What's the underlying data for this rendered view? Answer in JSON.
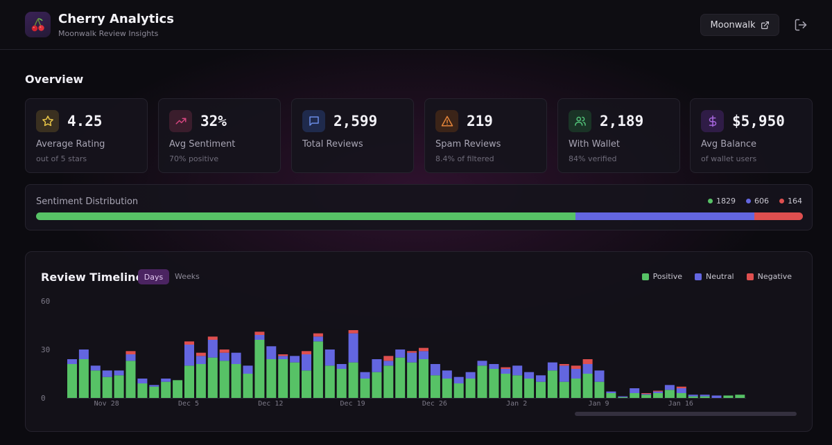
{
  "header": {
    "title": "Cherry Analytics",
    "subtitle": "Moonwalk Review Insights",
    "logo_icon": "cherry-icon",
    "moonwalk_button": "Moonwalk",
    "external_icon": "external-link-icon",
    "logout_icon": "logout-icon"
  },
  "overview": {
    "title": "Overview",
    "cards": [
      {
        "value": "4.25",
        "label": "Average Rating",
        "sub": "out of 5 stars",
        "icon": "star-icon",
        "color": "#e8c547",
        "bg": "#3a3020"
      },
      {
        "value": "32%",
        "label": "Avg Sentiment",
        "sub": "70% positive",
        "icon": "trending-up-icon",
        "color": "#d6457f",
        "bg": "#3a1d2c"
      },
      {
        "value": "2,599",
        "label": "Total Reviews",
        "sub": "",
        "icon": "message-icon",
        "color": "#6b8de6",
        "bg": "#1f2a4c"
      },
      {
        "value": "219",
        "label": "Spam Reviews",
        "sub": "8.4% of filtered",
        "icon": "warning-icon",
        "color": "#e5853a",
        "bg": "#3b2418"
      },
      {
        "value": "2,189",
        "label": "With Wallet",
        "sub": "84% verified",
        "icon": "users-icon",
        "color": "#53c47a",
        "bg": "#1a3326"
      },
      {
        "value": "$5,950",
        "label": "Avg Balance",
        "sub": "of wallet users",
        "icon": "dollar-icon",
        "color": "#a867e0",
        "bg": "#2f1c46"
      }
    ]
  },
  "distribution": {
    "title": "Sentiment Distribution",
    "positive": 1829,
    "neutral": 606,
    "negative": 164,
    "positive_label": "1829",
    "neutral_label": "606",
    "negative_label": "164",
    "colors": {
      "positive": "#57c266",
      "neutral": "#6366e0",
      "negative": "#de4f4f"
    }
  },
  "timeline": {
    "title": "Review Timeline",
    "tab_days": "Days",
    "tab_weeks": "Weeks",
    "legend": {
      "positive": "Positive",
      "neutral": "Neutral",
      "negative": "Negative"
    }
  },
  "chart_data": {
    "type": "bar",
    "stacked": true,
    "title": "Review Timeline",
    "ylim": [
      0,
      60
    ],
    "yticks": [
      0,
      30,
      60
    ],
    "xtick_labels": [
      {
        "index": 3,
        "label": "Nov 28"
      },
      {
        "index": 10,
        "label": "Dec 5"
      },
      {
        "index": 17,
        "label": "Dec 12"
      },
      {
        "index": 24,
        "label": "Dec 19"
      },
      {
        "index": 31,
        "label": "Dec 26"
      },
      {
        "index": 38,
        "label": "Jan 2"
      },
      {
        "index": 45,
        "label": "Jan 9"
      },
      {
        "index": 52,
        "label": "Jan 16"
      }
    ],
    "series": [
      {
        "name": "Positive",
        "color": "#57c266",
        "values": [
          21,
          24,
          17,
          13,
          14,
          23,
          9,
          7,
          10,
          11,
          20,
          21,
          25,
          23,
          21,
          15,
          36,
          24,
          24,
          22,
          17,
          35,
          20,
          18,
          22,
          12,
          16,
          20,
          25,
          22,
          24,
          14,
          12,
          9,
          12,
          20,
          18,
          15,
          14,
          12,
          10,
          17,
          10,
          12,
          15,
          10,
          3,
          0.5,
          3,
          2,
          3,
          5,
          3,
          1,
          1,
          0,
          1.5,
          2
        ],
        "x_range": "Nov 25 – Jan 21"
      },
      {
        "name": "Neutral",
        "color": "#6366e0",
        "values": [
          3,
          6,
          3,
          4,
          3,
          4,
          3,
          1,
          2,
          0,
          13,
          5,
          11,
          5,
          7,
          5,
          3,
          8,
          2,
          4,
          10,
          3,
          10,
          3,
          18,
          4,
          8,
          3,
          5,
          6,
          5,
          7,
          5,
          4,
          4,
          3,
          3,
          3,
          6,
          4,
          4,
          5,
          10,
          6,
          6,
          7,
          1,
          0.5,
          3,
          0.5,
          1,
          3,
          3,
          1,
          1,
          1.5,
          0,
          0
        ],
        "x_range": "Nov 25 – Jan 21"
      },
      {
        "name": "Negative",
        "color": "#de4f4f",
        "values": [
          0,
          0,
          0,
          0,
          0,
          2,
          0,
          0,
          0,
          0,
          2,
          2,
          2,
          2,
          0,
          0,
          2,
          0,
          1,
          0,
          2,
          2,
          0,
          0,
          2,
          0,
          0,
          3,
          0,
          1,
          2,
          0,
          0,
          0,
          0,
          0,
          0,
          1,
          0,
          0,
          0,
          0,
          1,
          2,
          3,
          0,
          0,
          0,
          0,
          0.5,
          0.5,
          0,
          1,
          0,
          0,
          0,
          0,
          0
        ]
      }
    ]
  }
}
